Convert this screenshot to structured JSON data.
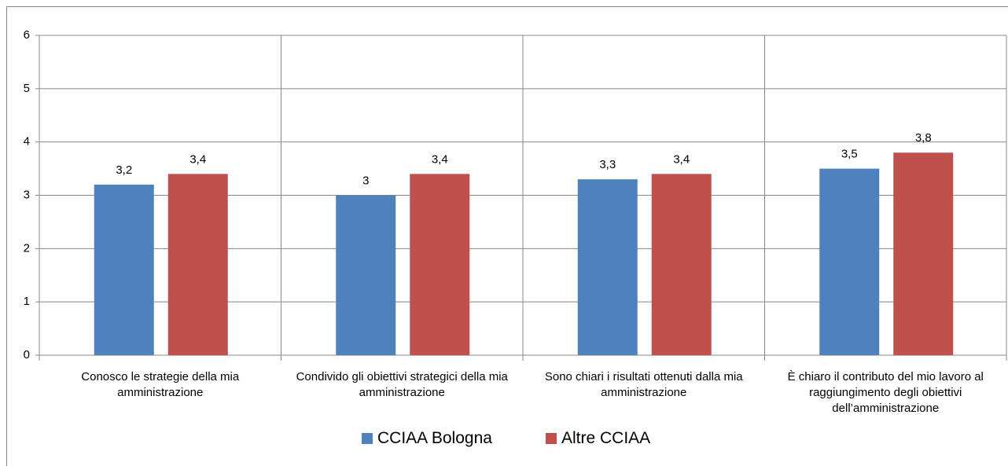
{
  "chart_data": {
    "type": "bar",
    "categories": [
      "Conosco le strategie della mia amministrazione",
      "Condivido gli obiettivi strategici della mia amministrazione",
      "Sono chiari i risultati ottenuti dalla mia amministrazione",
      "È chiaro il contributo del mio lavoro al raggiungimento degli obiettivi dell’amministrazione"
    ],
    "series": [
      {
        "name": "CCIAA Bologna",
        "color": "#4f81bd",
        "values": [
          3.2,
          3,
          3.3,
          3.5
        ],
        "value_labels": [
          "3,2",
          "3",
          "3,3",
          "3,5"
        ]
      },
      {
        "name": "Altre CCIAA",
        "color": "#c0504d",
        "values": [
          3.4,
          3.4,
          3.4,
          3.8
        ],
        "value_labels": [
          "3,4",
          "3,4",
          "3,4",
          "3,8"
        ]
      }
    ],
    "ylim": [
      0,
      6
    ],
    "yticks": [
      0,
      1,
      2,
      3,
      4,
      5,
      6
    ],
    "grid": true,
    "legend": "bottom"
  }
}
